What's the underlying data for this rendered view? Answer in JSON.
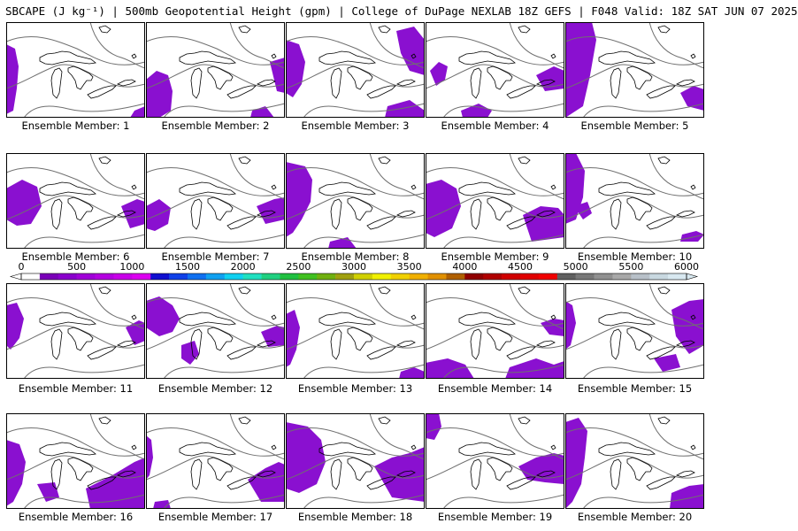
{
  "title": "SBCAPE (J kg⁻¹) | 500mb Geopotential Height (gpm) | College of DuPage NEXLAB 18Z GEFS | F048 Valid: 18Z SAT JUN 07 2025",
  "panels": [
    {
      "label": "Ensemble Member: 1"
    },
    {
      "label": "Ensemble Member: 2"
    },
    {
      "label": "Ensemble Member: 3"
    },
    {
      "label": "Ensemble Member: 4"
    },
    {
      "label": "Ensemble Member: 5"
    },
    {
      "label": "Ensemble Member: 6"
    },
    {
      "label": "Ensemble Member: 7"
    },
    {
      "label": "Ensemble Member: 8"
    },
    {
      "label": "Ensemble Member: 9"
    },
    {
      "label": "Ensemble Member: 10"
    },
    {
      "label": "Ensemble Member: 11"
    },
    {
      "label": "Ensemble Member: 12"
    },
    {
      "label": "Ensemble Member: 13"
    },
    {
      "label": "Ensemble Member: 14"
    },
    {
      "label": "Ensemble Member: 15"
    },
    {
      "label": "Ensemble Member: 16"
    },
    {
      "label": "Ensemble Member: 17"
    },
    {
      "label": "Ensemble Member: 18"
    },
    {
      "label": "Ensemble Member: 19"
    },
    {
      "label": "Ensemble Member: 20"
    }
  ],
  "colorbar": {
    "ticks": [
      "0",
      "500",
      "1000",
      "1500",
      "2000",
      "2500",
      "3000",
      "3500",
      "4000",
      "4500",
      "5000",
      "5500",
      "6000"
    ],
    "colors": [
      "#ffffff",
      "#7a00b8",
      "#8a00cc",
      "#a000d8",
      "#b400e0",
      "#c800e8",
      "#dc00f0",
      "#1010d0",
      "#1040e8",
      "#1070f0",
      "#10a0f0",
      "#10d0f0",
      "#20e0c0",
      "#20d080",
      "#20c040",
      "#40c020",
      "#70b010",
      "#a0a010",
      "#d0d000",
      "#f0f000",
      "#f0d000",
      "#f0b000",
      "#e09000",
      "#b06000",
      "#900000",
      "#b00000",
      "#d00000",
      "#e00000",
      "#f00000",
      "#606060",
      "#787878",
      "#909090",
      "#a8a8a8",
      "#b8c0c8",
      "#c8d8e0",
      "#d8e8f0"
    ],
    "fill_color": "#8a10d0"
  }
}
